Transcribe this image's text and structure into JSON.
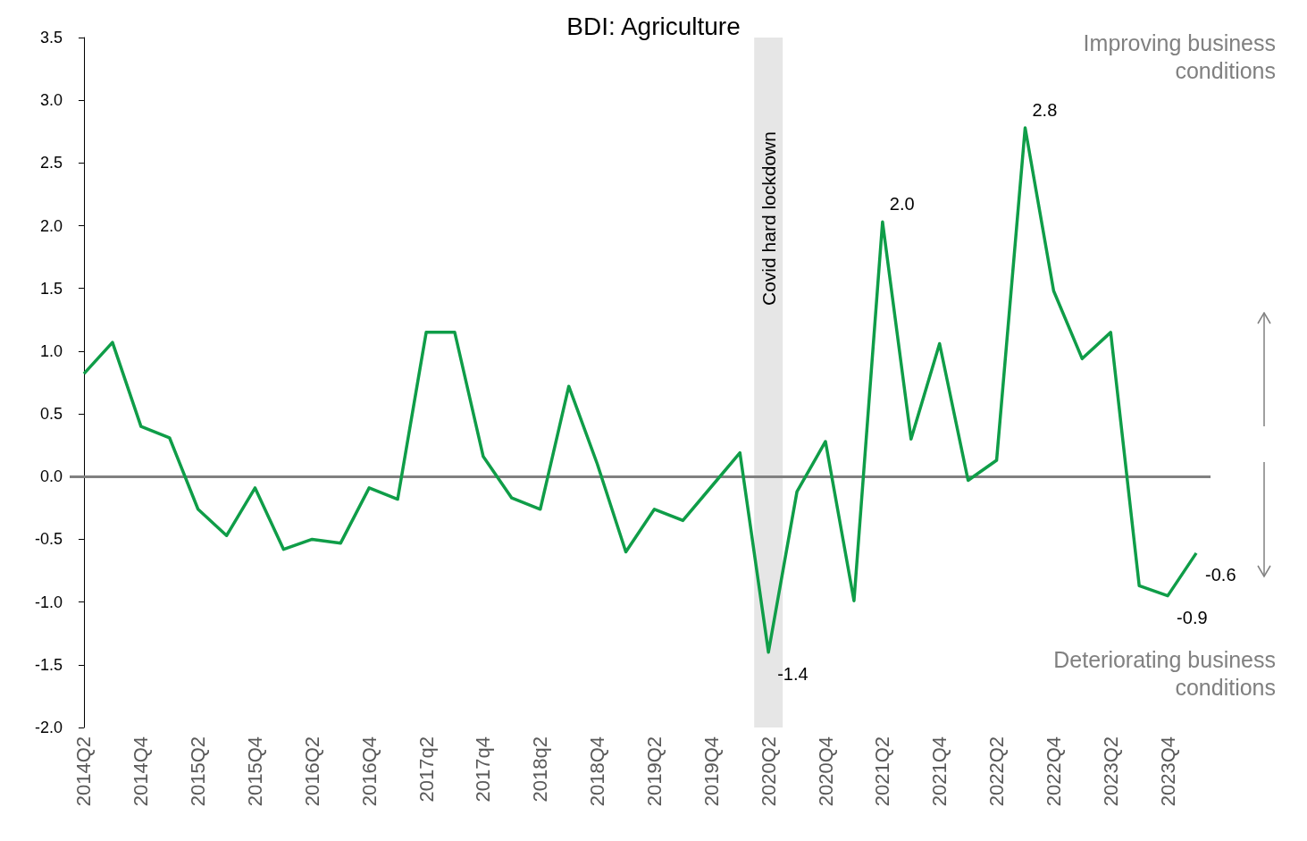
{
  "chart_data": {
    "type": "line",
    "title": "BDI: Agriculture",
    "categories": [
      "2014Q2",
      null,
      "2014Q4",
      null,
      "2015Q2",
      null,
      "2015Q4",
      null,
      "2016Q2",
      null,
      "2016Q4",
      null,
      "2017q2",
      null,
      "2017q4",
      null,
      "2018q2",
      null,
      "2018Q4",
      null,
      "2019Q2",
      null,
      "2019Q4",
      null,
      "2020Q2",
      null,
      "2020Q4",
      null,
      "2021Q2",
      null,
      "2021Q4",
      null,
      "2022Q2",
      null,
      "2022Q4",
      null,
      "2023Q2",
      null,
      "2023Q4",
      null
    ],
    "series": [
      {
        "color": "#0f9d48",
        "values": [
          0.82,
          1.07,
          0.4,
          0.31,
          -0.26,
          -0.47,
          -0.09,
          -0.58,
          -0.5,
          -0.53,
          -0.09,
          -0.18,
          1.15,
          1.15,
          0.16,
          -0.17,
          -0.26,
          0.72,
          0.1,
          -0.6,
          -0.26,
          -0.35,
          -0.08,
          0.19,
          -1.4,
          -0.12,
          0.28,
          -0.99,
          2.03,
          0.3,
          1.06,
          -0.03,
          0.13,
          2.78,
          1.48,
          0.94,
          1.15,
          -0.87,
          -0.95,
          -0.61
        ],
        "value_labels": [
          null,
          null,
          null,
          null,
          null,
          null,
          null,
          null,
          null,
          null,
          null,
          null,
          null,
          null,
          null,
          null,
          null,
          null,
          null,
          null,
          null,
          null,
          null,
          null,
          "-1.4",
          null,
          null,
          null,
          "2.0",
          null,
          null,
          null,
          null,
          "2.8",
          null,
          null,
          null,
          null,
          "-0.9",
          "-0.6"
        ]
      }
    ],
    "ylim": [
      -2.0,
      3.5
    ],
    "yticks": [
      {
        "value": -2,
        "label": "-2.0"
      },
      {
        "value": -1.5,
        "label": "-1.5"
      },
      {
        "value": -1,
        "label": "-1.0"
      },
      {
        "value": -0.5,
        "label": "-0.5"
      },
      {
        "value": 0,
        "label": "0.0"
      },
      {
        "value": 0.5,
        "label": "0.5"
      },
      {
        "value": 1,
        "label": "1.0"
      },
      {
        "value": 1.5,
        "label": "1.5"
      },
      {
        "value": 2,
        "label": "2.0"
      },
      {
        "value": 2.5,
        "label": "2.5"
      },
      {
        "value": 3,
        "label": "3.0"
      },
      {
        "value": 3.5,
        "label": "3.5"
      }
    ],
    "grid": false,
    "marker": "none",
    "line_style": "solid",
    "ref_lines": [
      {
        "axis": "y",
        "value": 0,
        "color": "#808080"
      }
    ],
    "bands": [
      {
        "axis": "x",
        "from": "2020Q2",
        "to": "2020Q2",
        "label": "Covid hard lockdown",
        "color": "#e6e6e6"
      }
    ],
    "annotations": [
      "Improving business conditions",
      "Deteriorating business conditions"
    ]
  }
}
